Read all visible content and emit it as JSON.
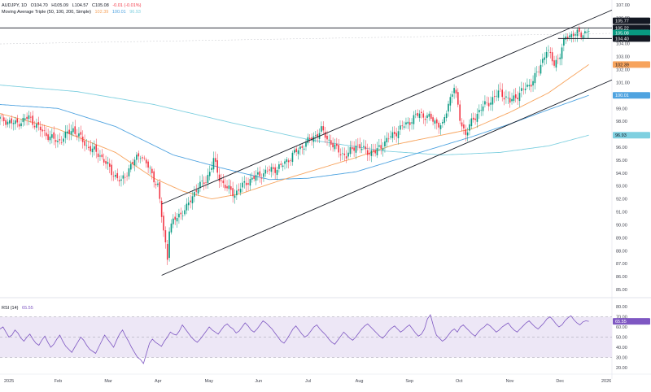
{
  "legend": {
    "symbol": "AUDJPY, 1D",
    "open": "O104.70",
    "high": "H105.09",
    "low": "L104.57",
    "close": "C105.08",
    "change": "-0.01 (-0.01%)",
    "ma_label": "Moving Average Triple (50, 100, 200, Simple)",
    "ma50": "102.39",
    "ma100": "100.01",
    "ma200": "96.93"
  },
  "rsi_legend": {
    "label": "RSI (14)",
    "value": "65.55"
  },
  "price_tags": {
    "upper_line": "105.77",
    "resistance": "105.22",
    "last": "105.08",
    "support": "104.40",
    "ma50": "102.39",
    "ma100": "100.01",
    "ma200": "96.93",
    "rsi": "65.55"
  },
  "colors": {
    "up": "#089981",
    "down": "#f23645",
    "ma50": "#f7a35c",
    "ma100": "#4fa3e0",
    "ma200": "#7fd0e0",
    "rsi_line": "#7e57c2",
    "rsi_band": "#ede7f6"
  },
  "chart_data": [
    {
      "type": "candlestick",
      "ylim": [
        85,
        107
      ],
      "y_ticks": [
        "107.00",
        "106.00",
        "105.00",
        "104.00",
        "103.00",
        "102.00",
        "101.00",
        "100.00",
        "99.00",
        "98.00",
        "97.00",
        "96.00",
        "95.00",
        "94.00",
        "93.00",
        "92.00",
        "91.00",
        "90.00",
        "89.00",
        "88.00",
        "87.00",
        "86.00",
        "85.00"
      ],
      "x_labels": [
        "2025",
        "Feb",
        "Mar",
        "Apr",
        "May",
        "Jun",
        "Jul",
        "Aug",
        "Sep",
        "Oct",
        "Nov",
        "Dec",
        "2026"
      ],
      "overlays": [
        "Moving Average 50",
        "Moving Average 100",
        "Moving Average 200",
        "Ascending channel",
        "Horizontal lines at 105.22 and 104.40"
      ],
      "close_path": [
        {
          "t": 0,
          "c": 98.2
        },
        {
          "t": 8,
          "c": 97.8
        },
        {
          "t": 15,
          "c": 98.3
        },
        {
          "t": 22,
          "c": 97.2
        },
        {
          "t": 30,
          "c": 96.4
        },
        {
          "t": 38,
          "c": 97.4
        },
        {
          "t": 45,
          "c": 96.1
        },
        {
          "t": 52,
          "c": 95.4
        },
        {
          "t": 58,
          "c": 94.1
        },
        {
          "t": 63,
          "c": 93.3
        },
        {
          "t": 68,
          "c": 94.6
        },
        {
          "t": 73,
          "c": 95.5
        },
        {
          "t": 78,
          "c": 94.2
        },
        {
          "t": 82,
          "c": 93.0
        },
        {
          "t": 85,
          "c": 89.5
        },
        {
          "t": 87,
          "c": 87.5
        },
        {
          "t": 88,
          "c": 89.8
        },
        {
          "t": 92,
          "c": 90.6
        },
        {
          "t": 97,
          "c": 91.3
        },
        {
          "t": 102,
          "c": 92.8
        },
        {
          "t": 107,
          "c": 93.4
        },
        {
          "t": 111,
          "c": 95.0
        },
        {
          "t": 114,
          "c": 93.6
        },
        {
          "t": 118,
          "c": 92.8
        },
        {
          "t": 122,
          "c": 92.4
        },
        {
          "t": 128,
          "c": 93.3
        },
        {
          "t": 134,
          "c": 93.8
        },
        {
          "t": 140,
          "c": 94.2
        },
        {
          "t": 146,
          "c": 94.5
        },
        {
          "t": 152,
          "c": 95.4
        },
        {
          "t": 158,
          "c": 96.2
        },
        {
          "t": 163,
          "c": 96.8
        },
        {
          "t": 167,
          "c": 97.3
        },
        {
          "t": 170,
          "c": 96.7
        },
        {
          "t": 175,
          "c": 95.8
        },
        {
          "t": 180,
          "c": 95.3
        },
        {
          "t": 185,
          "c": 96.2
        },
        {
          "t": 190,
          "c": 95.7
        },
        {
          "t": 195,
          "c": 95.6
        },
        {
          "t": 200,
          "c": 96.4
        },
        {
          "t": 206,
          "c": 97.2
        },
        {
          "t": 212,
          "c": 97.9
        },
        {
          "t": 218,
          "c": 98.6
        },
        {
          "t": 224,
          "c": 98.2
        },
        {
          "t": 230,
          "c": 97.6
        },
        {
          "t": 233,
          "c": 99.4
        },
        {
          "t": 236,
          "c": 100.7
        },
        {
          "t": 239,
          "c": 98.2
        },
        {
          "t": 242,
          "c": 97.0
        },
        {
          "t": 246,
          "c": 98.2
        },
        {
          "t": 250,
          "c": 99.0
        },
        {
          "t": 255,
          "c": 99.6
        },
        {
          "t": 260,
          "c": 100.3
        },
        {
          "t": 265,
          "c": 99.5
        },
        {
          "t": 270,
          "c": 100.2
        },
        {
          "t": 275,
          "c": 100.8
        },
        {
          "t": 280,
          "c": 101.9
        },
        {
          "t": 284,
          "c": 103.6
        },
        {
          "t": 288,
          "c": 102.4
        },
        {
          "t": 291,
          "c": 103.2
        },
        {
          "t": 294,
          "c": 104.5
        },
        {
          "t": 298,
          "c": 104.8
        },
        {
          "t": 302,
          "c": 104.7
        },
        {
          "t": 306,
          "c": 105.1
        }
      ],
      "ma50_path": [
        {
          "t": 0,
          "c": 98.6
        },
        {
          "t": 30,
          "c": 97.4
        },
        {
          "t": 60,
          "c": 95.6
        },
        {
          "t": 80,
          "c": 93.6
        },
        {
          "t": 95,
          "c": 92.6
        },
        {
          "t": 110,
          "c": 92.0
        },
        {
          "t": 125,
          "c": 92.4
        },
        {
          "t": 145,
          "c": 93.4
        },
        {
          "t": 165,
          "c": 94.3
        },
        {
          "t": 185,
          "c": 95.2
        },
        {
          "t": 205,
          "c": 96.2
        },
        {
          "t": 225,
          "c": 96.8
        },
        {
          "t": 245,
          "c": 97.4
        },
        {
          "t": 265,
          "c": 98.7
        },
        {
          "t": 285,
          "c": 100.2
        },
        {
          "t": 306,
          "c": 102.39
        }
      ],
      "ma100_path": [
        {
          "t": 0,
          "c": 99.3
        },
        {
          "t": 30,
          "c": 99.0
        },
        {
          "t": 60,
          "c": 97.6
        },
        {
          "t": 90,
          "c": 95.4
        },
        {
          "t": 115,
          "c": 94.4
        },
        {
          "t": 140,
          "c": 93.5
        },
        {
          "t": 160,
          "c": 93.6
        },
        {
          "t": 185,
          "c": 94.1
        },
        {
          "t": 205,
          "c": 95.0
        },
        {
          "t": 225,
          "c": 95.9
        },
        {
          "t": 245,
          "c": 96.8
        },
        {
          "t": 265,
          "c": 97.8
        },
        {
          "t": 285,
          "c": 98.9
        },
        {
          "t": 306,
          "c": 100.01
        }
      ],
      "ma200_path": [
        {
          "t": 0,
          "c": 100.8
        },
        {
          "t": 40,
          "c": 100.3
        },
        {
          "t": 80,
          "c": 99.3
        },
        {
          "t": 120,
          "c": 97.9
        },
        {
          "t": 160,
          "c": 96.6
        },
        {
          "t": 200,
          "c": 95.7
        },
        {
          "t": 230,
          "c": 95.4
        },
        {
          "t": 260,
          "c": 95.6
        },
        {
          "t": 285,
          "c": 96.1
        },
        {
          "t": 306,
          "c": 96.93
        }
      ],
      "channel_upper": [
        {
          "t": 84,
          "c": 91.6
        },
        {
          "t": 318,
          "c": 106.6
        }
      ],
      "channel_lower": [
        {
          "t": 84,
          "c": 86.1
        },
        {
          "t": 318,
          "c": 101.2
        }
      ],
      "horizontal_lines": [
        105.22,
        104.4
      ]
    },
    {
      "type": "line",
      "name": "RSI (14)",
      "ylim": [
        20,
        80
      ],
      "y_ticks": [
        "80.00",
        "70.00",
        "60.00",
        "50.00",
        "40.00",
        "30.00",
        "20.00"
      ],
      "bands": [
        70,
        50,
        30
      ],
      "values": [
        58,
        60,
        55,
        50,
        52,
        57,
        54,
        49,
        46,
        50,
        53,
        48,
        44,
        42,
        47,
        51,
        45,
        40,
        43,
        48,
        52,
        46,
        41,
        38,
        35,
        40,
        45,
        50,
        47,
        42,
        38,
        36,
        34,
        40,
        46,
        52,
        48,
        44,
        40,
        47,
        53,
        57,
        51,
        46,
        40,
        35,
        30,
        28,
        24,
        34,
        44,
        48,
        45,
        43,
        41,
        46,
        50,
        55,
        53,
        52,
        56,
        62,
        58,
        54,
        50,
        47,
        45,
        48,
        52,
        56,
        60,
        57,
        55,
        53,
        57,
        61,
        63,
        60,
        58,
        54,
        56,
        60,
        64,
        61,
        57,
        55,
        58,
        62,
        66,
        64,
        61,
        58,
        54,
        50,
        46,
        44,
        48,
        53,
        58,
        61,
        57,
        53,
        50,
        52,
        56,
        60,
        62,
        58,
        55,
        52,
        48,
        45,
        43,
        47,
        51,
        55,
        52,
        49,
        47,
        50,
        54,
        58,
        61,
        63,
        60,
        57,
        54,
        51,
        49,
        52,
        56,
        59,
        61,
        58,
        55,
        57,
        60,
        62,
        58,
        54,
        51,
        53,
        58,
        68,
        72,
        61,
        52,
        49,
        46,
        48,
        52,
        56,
        58,
        55,
        60,
        62,
        59,
        56,
        53,
        51,
        55,
        58,
        60,
        63,
        61,
        58,
        55,
        57,
        60,
        62,
        64,
        60,
        57,
        55,
        58,
        61,
        64,
        66,
        63,
        60,
        58,
        61,
        64,
        68,
        70,
        67,
        63,
        60,
        62,
        66,
        69,
        71,
        67,
        64,
        62,
        65,
        66,
        65.55
      ]
    }
  ]
}
